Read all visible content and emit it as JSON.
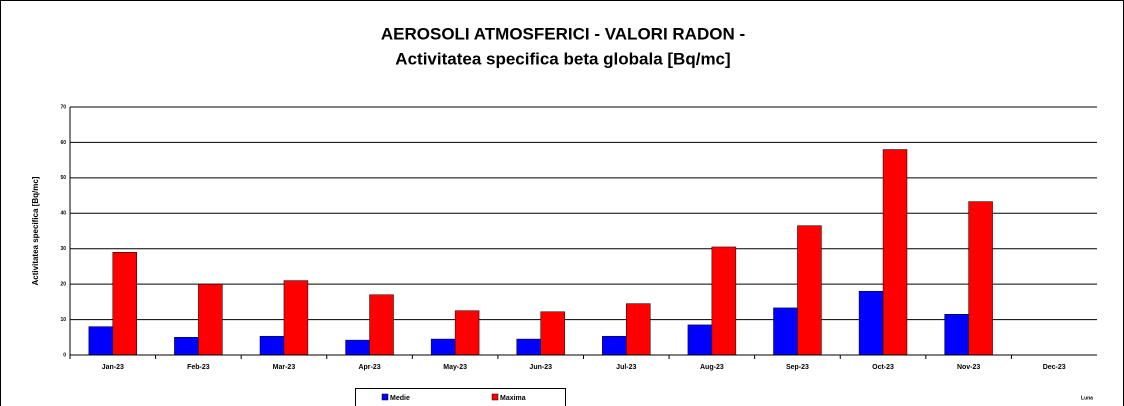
{
  "chart_data": {
    "type": "bar",
    "title": "AEROSOLI ATMOSFERICI - VALORI RADON -",
    "subtitle": "Activitatea  specifica beta globala [Bq/mc]",
    "y_label": "Activitatea specifica [Bq/mc]",
    "x_label": "Luna",
    "categories": [
      "Jan-23",
      "Feb-23",
      "Mar-23",
      "Apr-23",
      "May-23",
      "Jun-23",
      "Jul-23",
      "Aug-23",
      "Sep-23",
      "Oct-23",
      "Nov-23",
      "Dec-23"
    ],
    "series": [
      {
        "name": "Medie",
        "color": "#0000ff",
        "values": [
          8,
          5,
          5.3,
          4.2,
          4.5,
          4.5,
          5.3,
          8.5,
          13.3,
          18,
          11.5,
          null
        ]
      },
      {
        "name": "Maxima",
        "color": "#ff0000",
        "values": [
          29,
          20,
          21,
          17,
          12.5,
          12.2,
          14.5,
          30.5,
          36.5,
          58,
          43.3,
          null
        ]
      }
    ],
    "ylim": [
      0,
      70
    ],
    "yticks": [
      0,
      10,
      20,
      30,
      40,
      50,
      60,
      70
    ],
    "grid": true,
    "legend": "bottom"
  }
}
